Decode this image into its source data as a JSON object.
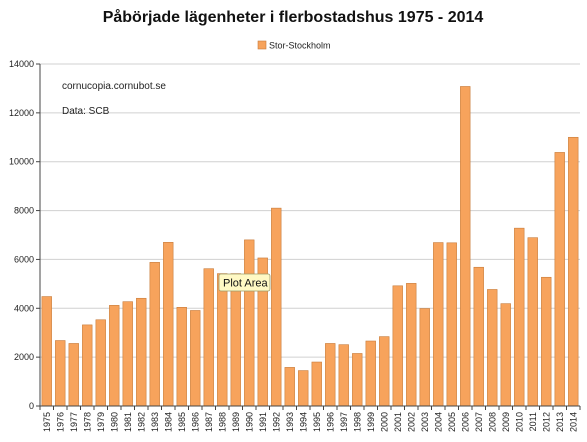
{
  "chart_data": {
    "type": "bar",
    "title": "Påbörjade lägenheter i flerbostadshus 1975 - 2014",
    "xlabel": "",
    "ylabel": "",
    "ylim": [
      0,
      14000
    ],
    "yticks": [
      0,
      2000,
      4000,
      6000,
      8000,
      10000,
      12000,
      14000
    ],
    "grid": true,
    "legend_position": "top-center",
    "categories": [
      "1975",
      "1976",
      "1977",
      "1978",
      "1979",
      "1980",
      "1981",
      "1982",
      "1983",
      "1984",
      "1985",
      "1986",
      "1987",
      "1988",
      "1989",
      "1990",
      "1991",
      "1992",
      "1993",
      "1994",
      "1995",
      "1996",
      "1997",
      "1998",
      "1999",
      "2000",
      "2001",
      "2002",
      "2003",
      "2004",
      "2005",
      "2006",
      "2007",
      "2008",
      "2009",
      "2010",
      "2011",
      "2012",
      "2013",
      "2014"
    ],
    "series": [
      {
        "name": "Stor-Stockholm",
        "color": "#f7a35c",
        "values": [
          4480,
          2680,
          2560,
          3320,
          3530,
          4120,
          4270,
          4410,
          5880,
          6700,
          4040,
          3910,
          5620,
          5420,
          5420,
          6800,
          6060,
          8100,
          1580,
          1450,
          1800,
          2560,
          2510,
          2150,
          2660,
          2840,
          4920,
          5020,
          3990,
          6690,
          6680,
          13080,
          5680,
          4770,
          4190,
          7280,
          6890,
          5270,
          10380,
          11000
        ]
      }
    ],
    "annotations": [
      "cornucopia.cornubot.se",
      "Data: SCB"
    ]
  },
  "tooltip": {
    "label": "Plot Area"
  },
  "colors": {
    "bar_fill": "#f7a35c",
    "bar_stroke": "#c77b3a",
    "grid": "#d0d0d0",
    "axis": "#444444"
  }
}
